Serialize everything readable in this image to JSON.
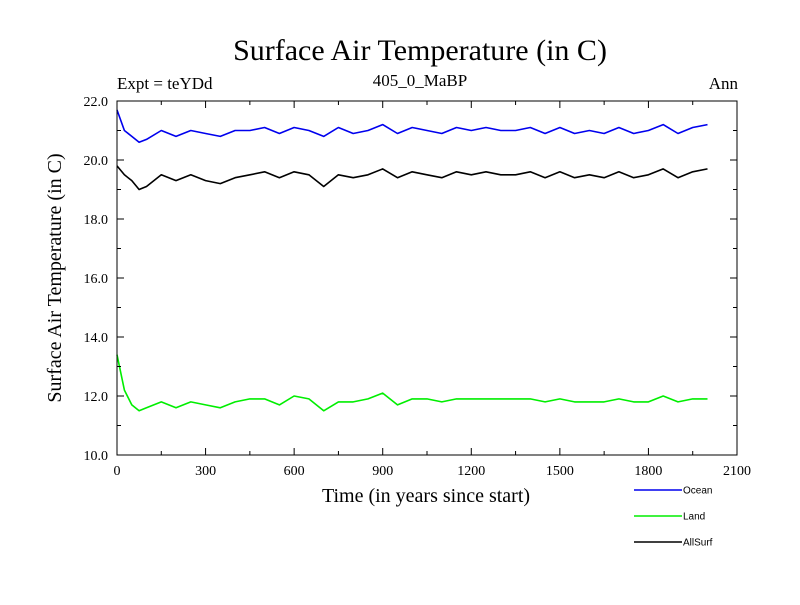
{
  "chart_data": {
    "type": "line",
    "title": "Surface Air Temperature (in C)",
    "subtitle_left": "Expt = teYDd",
    "subtitle_center": "405_0_MaBP",
    "subtitle_right": "Ann",
    "xlabel": "Time (in years since start)",
    "ylabel": "Surface Air Temperature (in C)",
    "xlim": [
      0,
      2100
    ],
    "ylim": [
      10,
      22
    ],
    "xticks": [
      0,
      300,
      600,
      900,
      1200,
      1500,
      1800,
      2100
    ],
    "yticks": [
      10,
      12,
      14,
      16,
      18,
      20,
      22
    ],
    "ytick_labels": [
      "10.0",
      "12.0",
      "14.0",
      "16.0",
      "18.0",
      "20.0",
      "22.0"
    ],
    "x": [
      0,
      25,
      50,
      75,
      100,
      150,
      200,
      250,
      300,
      350,
      400,
      450,
      500,
      550,
      600,
      650,
      700,
      750,
      800,
      850,
      900,
      950,
      1000,
      1050,
      1100,
      1150,
      1200,
      1250,
      1300,
      1350,
      1400,
      1450,
      1500,
      1550,
      1600,
      1650,
      1700,
      1750,
      1800,
      1850,
      1900,
      1950,
      2000
    ],
    "series": [
      {
        "name": "Ocean",
        "color": "#0000ee",
        "values": [
          21.7,
          21.0,
          20.8,
          20.6,
          20.7,
          21.0,
          20.8,
          21.0,
          20.9,
          20.8,
          21.0,
          21.0,
          21.1,
          20.9,
          21.1,
          21.0,
          20.8,
          21.1,
          20.9,
          21.0,
          21.2,
          20.9,
          21.1,
          21.0,
          20.9,
          21.1,
          21.0,
          21.1,
          21.0,
          21.0,
          21.1,
          20.9,
          21.1,
          20.9,
          21.0,
          20.9,
          21.1,
          20.9,
          21.0,
          21.2,
          20.9,
          21.1,
          21.2
        ]
      },
      {
        "name": "Land",
        "color": "#00ee00",
        "values": [
          13.4,
          12.2,
          11.7,
          11.5,
          11.6,
          11.8,
          11.6,
          11.8,
          11.7,
          11.6,
          11.8,
          11.9,
          11.9,
          11.7,
          12.0,
          11.9,
          11.5,
          11.8,
          11.8,
          11.9,
          12.1,
          11.7,
          11.9,
          11.9,
          11.8,
          11.9,
          11.9,
          11.9,
          11.9,
          11.9,
          11.9,
          11.8,
          11.9,
          11.8,
          11.8,
          11.8,
          11.9,
          11.8,
          11.8,
          12.0,
          11.8,
          11.9,
          11.9
        ]
      },
      {
        "name": "AllSurf",
        "color": "#000000",
        "values": [
          19.8,
          19.5,
          19.3,
          19.0,
          19.1,
          19.5,
          19.3,
          19.5,
          19.3,
          19.2,
          19.4,
          19.5,
          19.6,
          19.4,
          19.6,
          19.5,
          19.1,
          19.5,
          19.4,
          19.5,
          19.7,
          19.4,
          19.6,
          19.5,
          19.4,
          19.6,
          19.5,
          19.6,
          19.5,
          19.5,
          19.6,
          19.4,
          19.6,
          19.4,
          19.5,
          19.4,
          19.6,
          19.4,
          19.5,
          19.7,
          19.4,
          19.6,
          19.7
        ]
      }
    ],
    "legend_position": "bottom-right"
  }
}
